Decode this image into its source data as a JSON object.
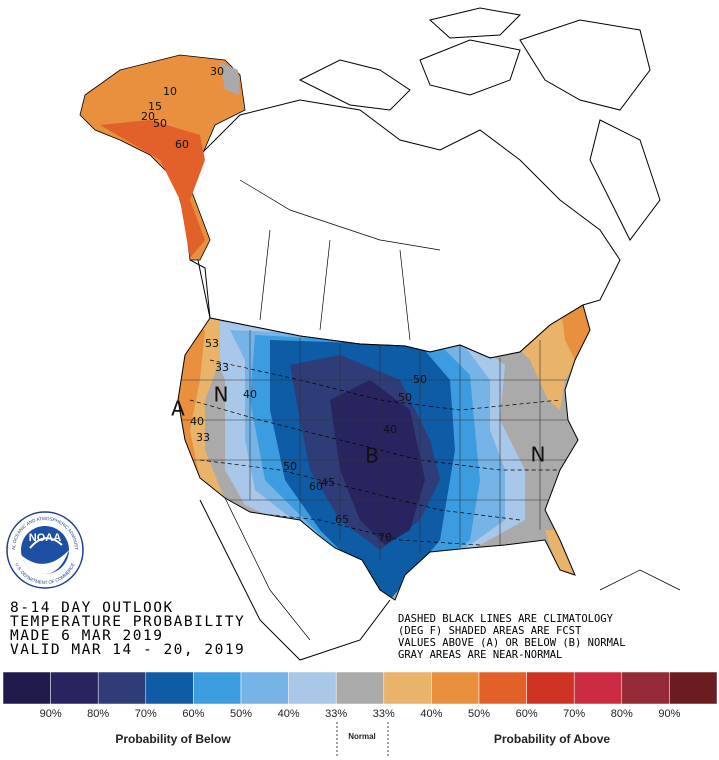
{
  "header": {
    "lines": [
      "8-14 DAY OUTLOOK",
      "TEMPERATURE PROBABILITY",
      "MADE  6 MAR 2019",
      "VALID  MAR 14 - 20, 2019"
    ]
  },
  "notes": [
    "DASHED BLACK LINES ARE CLIMATOLOGY",
    "(DEG F) SHADED AREAS ARE FCST",
    "VALUES ABOVE (A) OR BELOW (B) NORMAL",
    "GRAY AREAS ARE NEAR-NORMAL"
  ],
  "logo": {
    "name": "NOAA",
    "ring_top": "NATIONAL OCEANIC AND ATMOSPHERIC ADMINISTRATION",
    "ring_bottom": "U.S. DEPARTMENT OF COMMERCE"
  },
  "map_labels": [
    "33",
    "N",
    "40",
    "A",
    "40",
    "33",
    "53",
    "50",
    "60",
    "B",
    "70",
    "50",
    "50",
    "40",
    "N",
    "10",
    "15",
    "20",
    "30",
    "50",
    "60",
    "65",
    "45"
  ],
  "legend": {
    "colors": [
      "#1f1b4c",
      "#27245f",
      "#2e3c78",
      "#0e5ba6",
      "#3b9ce0",
      "#76b4e7",
      "#a8c7e9",
      "#aaaaaa",
      "#e9b46a",
      "#e8903e",
      "#e2612a",
      "#cf3324",
      "#cc2b44",
      "#932a34",
      "#6a1c21"
    ],
    "labels": [
      "90%",
      "80%",
      "70%",
      "60%",
      "50%",
      "40%",
      "33%",
      "33%",
      "40%",
      "50%",
      "60%",
      "70%",
      "80%",
      "90%"
    ],
    "below": "Probability of Below",
    "normal": "Normal",
    "above": "Probability of Above"
  }
}
